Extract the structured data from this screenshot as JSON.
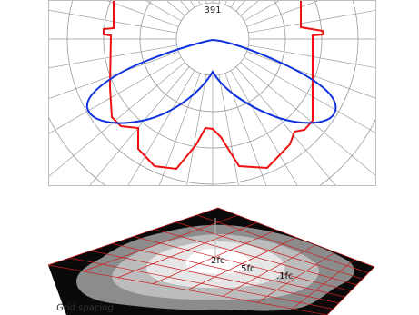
{
  "polar_plot": {
    "center_value": "391",
    "colors": {
      "grid": "#9a9a9a",
      "red_curve": "#ee1111",
      "blue_curve": "#1133dd"
    }
  },
  "footprint": {
    "contours": [
      "2fc",
      ".5fc",
      ".1fc"
    ],
    "grid_spacing_label": "Grid spacing",
    "colors": {
      "ground": "#0a0a0a",
      "outer": "#8c8c8c",
      "mid": "#bcbcbc",
      "inner": "#e6e6e6",
      "core": "#ffffff",
      "grid": "#cc1e1e"
    }
  }
}
